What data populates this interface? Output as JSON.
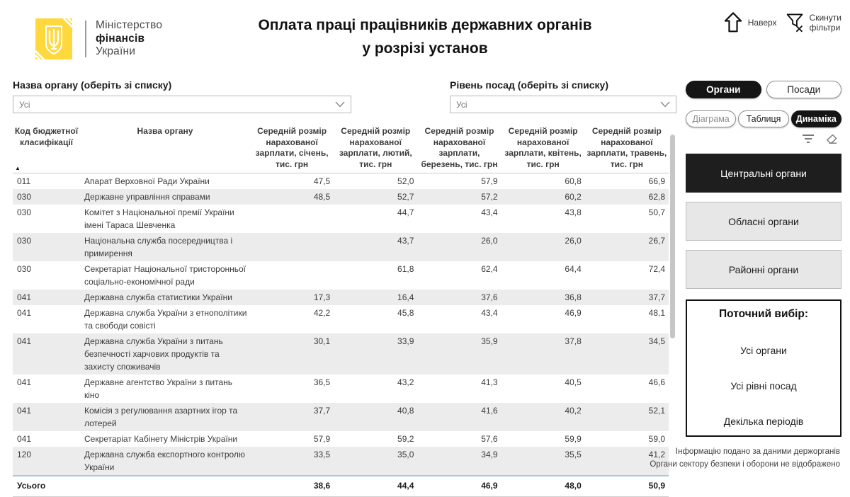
{
  "header": {
    "logo": {
      "org_line1": "Міністерство",
      "org_line2": "фінансів",
      "org_line3": "України"
    },
    "title_line1": "Оплата праці працівників державних органів",
    "title_line2": "у розрізі установ",
    "actions": {
      "to_top": "Наверх",
      "reset_filters_line1": "Скинути",
      "reset_filters_line2": "фільтри"
    }
  },
  "filters": {
    "organ": {
      "label": "Назва органу (оберіть зі списку)",
      "value": "Усі"
    },
    "position": {
      "label": "Рівень посад (оберіть зі списку)",
      "value": "Усі"
    }
  },
  "table": {
    "columns": [
      "Код бюджетної класифікації",
      "Назва органу",
      "Середній розмір нарахованої зарплати, січень, тис. грн",
      "Середній розмір нарахованої зарплати, лютий, тис. грн",
      "Середній розмір нарахованої зарплати, березень, тис. грн",
      "Середній розмір нарахованої зарплати, квітень, тис. грн",
      "Середній розмір нарахованої зарплати, травень, тис. грн"
    ],
    "rows": [
      {
        "code": "011",
        "name": "Апарат Верховної Ради України",
        "values": [
          "47,5",
          "52,0",
          "57,9",
          "60,8",
          "66,9"
        ]
      },
      {
        "code": "030",
        "name": "Державне управління справами",
        "values": [
          "48,5",
          "52,7",
          "57,2",
          "60,2",
          "62,8"
        ]
      },
      {
        "code": "030",
        "name": "Комітет з Національної премії України імені Тараса Шевченка",
        "values": [
          "",
          "44,7",
          "43,4",
          "43,8",
          "50,7"
        ]
      },
      {
        "code": "030",
        "name": "Національна служба посередництва і примирення",
        "values": [
          "",
          "43,7",
          "26,0",
          "26,0",
          "26,7"
        ]
      },
      {
        "code": "030",
        "name": "Секретаріат Національної тристоронньої соціально-економічної ради",
        "values": [
          "",
          "61,8",
          "62,4",
          "64,4",
          "72,4"
        ]
      },
      {
        "code": "041",
        "name": "Державна служба статистики України",
        "values": [
          "17,3",
          "16,4",
          "37,6",
          "36,8",
          "37,7"
        ]
      },
      {
        "code": "041",
        "name": "Державна служба України з етнополітики та свободи совісті",
        "values": [
          "42,2",
          "45,8",
          "43,4",
          "46,9",
          "48,1"
        ]
      },
      {
        "code": "041",
        "name": "Державна служба України з питань безпечності харчових продуктів та захисту споживачів",
        "values": [
          "30,1",
          "33,9",
          "35,9",
          "37,8",
          "34,5"
        ]
      },
      {
        "code": "041",
        "name": "Державне агентство України з питань кіно",
        "values": [
          "36,5",
          "43,2",
          "41,3",
          "40,5",
          "46,6"
        ]
      },
      {
        "code": "041",
        "name": "Комісія з регулювання азартних ігор та лотерей",
        "values": [
          "37,7",
          "40,8",
          "41,6",
          "40,2",
          "52,1"
        ]
      },
      {
        "code": "041",
        "name": "Секретаріат Кабінету Міністрів України",
        "values": [
          "57,9",
          "59,2",
          "57,6",
          "59,9",
          "59,0"
        ]
      },
      {
        "code": "120",
        "name": "Державна служба експортного контролю України",
        "values": [
          "33,5",
          "35,0",
          "34,9",
          "35,5",
          "41,2"
        ]
      }
    ],
    "total": {
      "label": "Усього",
      "values": [
        "38,6",
        "44,4",
        "46,9",
        "48,0",
        "50,9"
      ]
    }
  },
  "side_panel": {
    "entity_toggle": [
      {
        "label": "Органи",
        "selected": true
      },
      {
        "label": "Посади",
        "selected": false
      }
    ],
    "view_toggle": [
      {
        "label": "Діаграма",
        "selected": false
      },
      {
        "label": "Таблиця",
        "selected": false
      },
      {
        "label": "Динаміка",
        "selected": true
      }
    ],
    "level_buttons": [
      {
        "label": "Центральні органи",
        "selected": true
      },
      {
        "label": "Обласні органи",
        "selected": false
      },
      {
        "label": "Районні органи",
        "selected": false
      }
    ],
    "current_selection": {
      "title": "Поточний вибір:",
      "items": [
        "Усі органи",
        "Усі рівні посад",
        "Декілька періодів"
      ]
    }
  },
  "footer": {
    "line1": "Інформацію подано за даними держорганів",
    "line2": "Органи сектору безпеки і оборони не відображено"
  },
  "colors": {
    "brand_yellow": "#ffd83d",
    "selected_black": "#1e1e1e",
    "row_band": "#ececec",
    "total_border": "#a6c9e3"
  }
}
